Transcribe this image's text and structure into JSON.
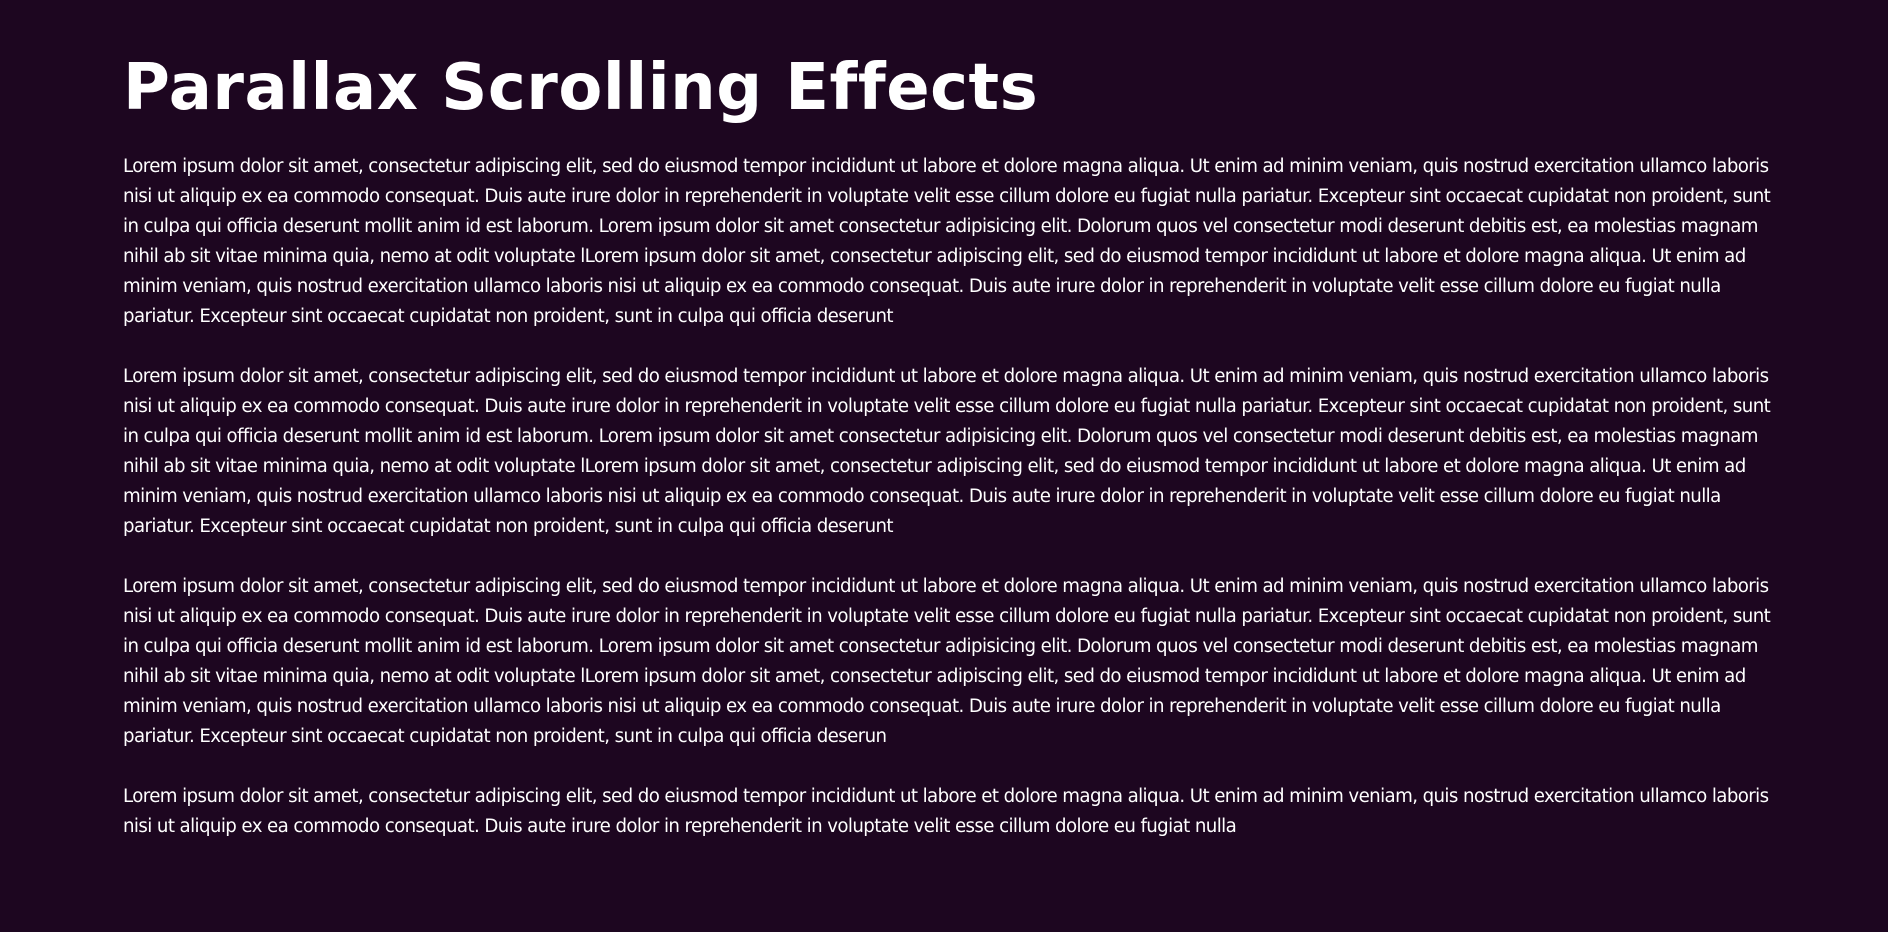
{
  "page": {
    "title": "Parallax Scrolling Effects"
  },
  "paragraphs": [
    {
      "text": "Lorem ipsum dolor sit amet, consectetur adipiscing elit, sed do eiusmod tempor incididunt ut labore et dolore magna aliqua. Ut enim ad minim veniam, quis nostrud exercitation ullamco laboris nisi ut aliquip ex ea commodo consequat. Duis aute irure dolor in reprehenderit in voluptate velit esse cillum dolore eu fugiat nulla pariatur. Excepteur sint occaecat cupidatat non proident, sunt in culpa qui officia deserunt mollit anim id est laborum. Lorem ipsum dolor sit amet consectetur adipisicing elit. Dolorum quos vel consectetur modi deserunt debitis est, ea molestias magnam nihil ab sit vitae minima quia, nemo at odit voluptate lLorem ipsum dolor sit amet, consectetur adipiscing elit, sed do eiusmod tempor incididunt ut labore et dolore magna aliqua. Ut enim ad minim veniam, quis nostrud exercitation ullamco laboris nisi ut aliquip ex ea commodo consequat. Duis aute irure dolor in reprehenderit in voluptate velit esse cillum dolore eu fugiat nulla pariatur. Excepteur sint occaecat cupidatat non proident, sunt in culpa qui officia deserunt"
    },
    {
      "text": "Lorem ipsum dolor sit amet, consectetur adipiscing elit, sed do eiusmod tempor incididunt ut labore et dolore magna aliqua. Ut enim ad minim veniam, quis nostrud exercitation ullamco laboris nisi ut aliquip ex ea commodo consequat. Duis aute irure dolor in reprehenderit in voluptate velit esse cillum dolore eu fugiat nulla pariatur. Excepteur sint occaecat cupidatat non proident, sunt in culpa qui officia deserunt mollit anim id est laborum. Lorem ipsum dolor sit amet consectetur adipisicing elit. Dolorum quos vel consectetur modi deserunt debitis est, ea molestias magnam nihil ab sit vitae minima quia, nemo at odit voluptate lLorem ipsum dolor sit amet, consectetur adipiscing elit, sed do eiusmod tempor incididunt ut labore et dolore magna aliqua. Ut enim ad minim veniam, quis nostrud exercitation ullamco laboris nisi ut aliquip ex ea commodo consequat. Duis aute irure dolor in reprehenderit in voluptate velit esse cillum dolore eu fugiat nulla pariatur. Excepteur sint occaecat cupidatat non proident, sunt in culpa qui officia deserunt"
    },
    {
      "text": "Lorem ipsum dolor sit amet, consectetur adipiscing elit, sed do eiusmod tempor incididunt ut labore et dolore magna aliqua. Ut enim ad minim veniam, quis nostrud exercitation ullamco laboris nisi ut aliquip ex ea commodo consequat. Duis aute irure dolor in reprehenderit in voluptate velit esse cillum dolore eu fugiat nulla pariatur. Excepteur sint occaecat cupidatat non proident, sunt in culpa qui officia deserunt mollit anim id est laborum. Lorem ipsum dolor sit amet consectetur adipisicing elit. Dolorum quos vel consectetur modi deserunt debitis est, ea molestias magnam nihil ab sit vitae minima quia, nemo at odit voluptate lLorem ipsum dolor sit amet, consectetur adipiscing elit, sed do eiusmod tempor incididunt ut labore et dolore magna aliqua. Ut enim ad minim veniam, quis nostrud exercitation ullamco laboris nisi ut aliquip ex ea commodo consequat. Duis aute irure dolor in reprehenderit in voluptate velit esse cillum dolore eu fugiat nulla pariatur. Excepteur sint occaecat cupidatat non proident, sunt in culpa qui officia deserun"
    },
    {
      "text": "Lorem ipsum dolor sit amet, consectetur adipiscing elit, sed do eiusmod tempor incididunt ut labore et dolore magna aliqua. Ut enim ad minim veniam, quis nostrud exercitation ullamco laboris nisi ut aliquip ex ea commodo consequat. Duis aute irure dolor in reprehenderit in voluptate velit esse cillum dolore eu fugiat nulla"
    }
  ],
  "colors": {
    "background": "#1d0620",
    "text": "#ffffff"
  }
}
